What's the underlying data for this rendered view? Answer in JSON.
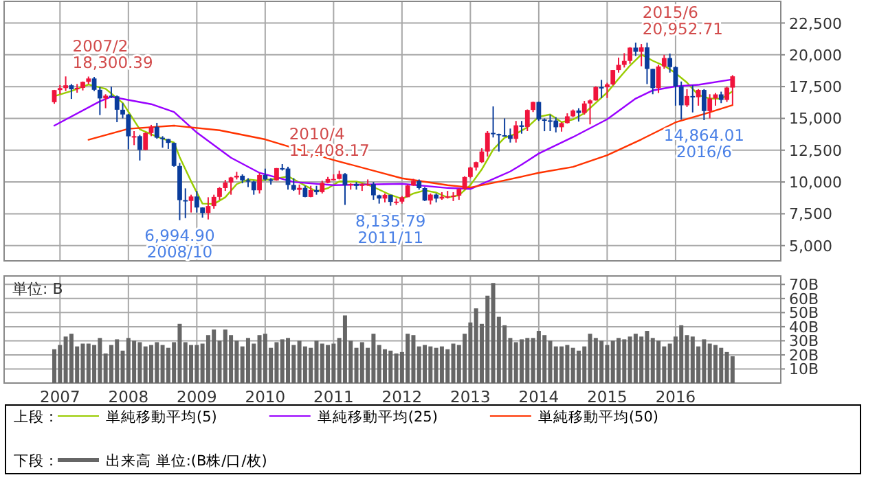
{
  "chart_data": [
    {
      "type": "candlestick",
      "legend": "bottom",
      "legend_title": "上段：",
      "grid": true,
      "tick_labels": "y",
      "xlim": [
        "2006-03-07",
        "2017-07-15"
      ],
      "xticks": [
        {
          "value": "2007-01",
          "label": null
        },
        {
          "value": "2008-01",
          "label": null
        },
        {
          "value": "2009-01",
          "label": null
        },
        {
          "value": "2010-01",
          "label": null
        },
        {
          "value": "2011-01",
          "label": null
        },
        {
          "value": "2012-01",
          "label": null
        },
        {
          "value": "2013-01",
          "label": null
        },
        {
          "value": "2014-01",
          "label": null
        },
        {
          "value": "2015-01",
          "label": null
        },
        {
          "value": "2016-01",
          "label": null
        }
      ],
      "ylim": [
        3800,
        24200
      ],
      "yticks": [
        {
          "value": 5000,
          "label": "5,000"
        },
        {
          "value": 7500,
          "label": "7,500"
        },
        {
          "value": 10000,
          "label": "10,000"
        },
        {
          "value": 12500,
          "label": "12,500"
        },
        {
          "value": 15000,
          "label": "15,000"
        },
        {
          "value": 17500,
          "label": "17,500"
        },
        {
          "value": 20000,
          "label": "20,000"
        },
        {
          "value": 22500,
          "label": "22,500"
        }
      ],
      "x": [
        "2006-12",
        "2007-01",
        "2007-02",
        "2007-03",
        "2007-04",
        "2007-05",
        "2007-06",
        "2007-07",
        "2007-08",
        "2007-09",
        "2007-10",
        "2007-11",
        "2007-12",
        "2008-01",
        "2008-02",
        "2008-03",
        "2008-04",
        "2008-05",
        "2008-06",
        "2008-07",
        "2008-08",
        "2008-09",
        "2008-10",
        "2008-11",
        "2008-12",
        "2009-01",
        "2009-02",
        "2009-03",
        "2009-04",
        "2009-05",
        "2009-06",
        "2009-07",
        "2009-08",
        "2009-09",
        "2009-10",
        "2009-11",
        "2009-12",
        "2010-01",
        "2010-02",
        "2010-03",
        "2010-04",
        "2010-05",
        "2010-06",
        "2010-07",
        "2010-08",
        "2010-09",
        "2010-10",
        "2010-11",
        "2010-12",
        "2011-01",
        "2011-02",
        "2011-03",
        "2011-04",
        "2011-05",
        "2011-06",
        "2011-07",
        "2011-08",
        "2011-09",
        "2011-10",
        "2011-11",
        "2011-12",
        "2012-01",
        "2012-02",
        "2012-03",
        "2012-04",
        "2012-05",
        "2012-06",
        "2012-07",
        "2012-08",
        "2012-09",
        "2012-10",
        "2012-11",
        "2012-12",
        "2013-01",
        "2013-02",
        "2013-03",
        "2013-04",
        "2013-05",
        "2013-06",
        "2013-07",
        "2013-08",
        "2013-09",
        "2013-10",
        "2013-11",
        "2013-12",
        "2014-01",
        "2014-02",
        "2014-03",
        "2014-04",
        "2014-05",
        "2014-06",
        "2014-07",
        "2014-08",
        "2014-09",
        "2014-10",
        "2014-11",
        "2014-12",
        "2015-01",
        "2015-02",
        "2015-03",
        "2015-04",
        "2015-05",
        "2015-06",
        "2015-07",
        "2015-08",
        "2015-09",
        "2015-10",
        "2015-11",
        "2015-12",
        "2016-01",
        "2016-02",
        "2016-03",
        "2016-04",
        "2016-05",
        "2016-06",
        "2016-07",
        "2016-08",
        "2016-09",
        "2016-10",
        "2016-11"
      ],
      "ohlc": [
        [
          16274,
          17240,
          16150,
          17226
        ],
        [
          17226,
          17620,
          16900,
          17383
        ],
        [
          17383,
          18300.39,
          17150,
          17604
        ],
        [
          17604,
          17700,
          16530,
          17288
        ],
        [
          17288,
          17700,
          17020,
          17400
        ],
        [
          17400,
          17900,
          17200,
          17876
        ],
        [
          17876,
          18290,
          17700,
          18138
        ],
        [
          18138,
          18260,
          17150,
          17249
        ],
        [
          17249,
          17460,
          15262,
          16569
        ],
        [
          16569,
          16900,
          15800,
          16786
        ],
        [
          16786,
          17488,
          16600,
          16738
        ],
        [
          16738,
          16800,
          14700,
          15681
        ],
        [
          15681,
          16200,
          15000,
          15308
        ],
        [
          15308,
          15350,
          12570,
          13592
        ],
        [
          13592,
          14000,
          12900,
          13603
        ],
        [
          13603,
          13700,
          11690,
          12526
        ],
        [
          12526,
          13900,
          12500,
          13850
        ],
        [
          13850,
          14490,
          13600,
          14339
        ],
        [
          14339,
          14650,
          13400,
          13481
        ],
        [
          13481,
          13600,
          12700,
          13377
        ],
        [
          13377,
          13400,
          12600,
          13073
        ],
        [
          13073,
          13100,
          11200,
          11260
        ],
        [
          11260,
          11500,
          6994.9,
          8577
        ],
        [
          8577,
          9500,
          7160,
          8512
        ],
        [
          8512,
          9000,
          7600,
          8860
        ],
        [
          8860,
          9300,
          7600,
          7994
        ],
        [
          7994,
          8000,
          7200,
          7568
        ],
        [
          7568,
          8800,
          7055,
          8110
        ],
        [
          8110,
          9000,
          7900,
          8828
        ],
        [
          8828,
          9600,
          8600,
          9523
        ],
        [
          9523,
          10170,
          9300,
          9958
        ],
        [
          9958,
          10400,
          9000,
          10357
        ],
        [
          10357,
          10800,
          10200,
          10493
        ],
        [
          10493,
          10600,
          9900,
          10133
        ],
        [
          10133,
          10300,
          9600,
          10034
        ],
        [
          10034,
          10100,
          9000,
          9346
        ],
        [
          9346,
          10700,
          9100,
          10546
        ],
        [
          10546,
          11050,
          10100,
          10198
        ],
        [
          10198,
          10300,
          9800,
          10126
        ],
        [
          10126,
          11100,
          10100,
          11090
        ],
        [
          11090,
          11408.17,
          10900,
          11057
        ],
        [
          11057,
          11200,
          9400,
          9769
        ],
        [
          9769,
          10300,
          9300,
          9383
        ],
        [
          9383,
          9800,
          9000,
          9537
        ],
        [
          9537,
          9700,
          8800,
          8824
        ],
        [
          8824,
          9700,
          8800,
          9369
        ],
        [
          9369,
          9700,
          9000,
          9202
        ],
        [
          9202,
          10100,
          9100,
          9937
        ],
        [
          9937,
          10400,
          9900,
          10229
        ],
        [
          10229,
          10600,
          10200,
          10238
        ],
        [
          10238,
          10890,
          10200,
          10624
        ],
        [
          10624,
          10700,
          8200,
          9755
        ],
        [
          9755,
          9900,
          9400,
          9850
        ],
        [
          9850,
          10000,
          9400,
          9694
        ],
        [
          9694,
          9900,
          9300,
          9816
        ],
        [
          9816,
          10200,
          9700,
          9833
        ],
        [
          9833,
          10000,
          8600,
          8955
        ],
        [
          8955,
          9000,
          8300,
          8700
        ],
        [
          8700,
          9100,
          8400,
          8988
        ],
        [
          8988,
          9000,
          8135.79,
          8435
        ],
        [
          8435,
          8700,
          8200,
          8455
        ],
        [
          8455,
          8900,
          8300,
          8803
        ],
        [
          8803,
          9800,
          8800,
          9723
        ],
        [
          9723,
          10250,
          9700,
          10084
        ],
        [
          10084,
          10200,
          9400,
          9521
        ],
        [
          9521,
          9600,
          8500,
          8543
        ],
        [
          8543,
          9100,
          8240,
          9007
        ],
        [
          9007,
          9100,
          8400,
          8695
        ],
        [
          8695,
          9200,
          8600,
          8840
        ],
        [
          8840,
          9300,
          8700,
          8870
        ],
        [
          8870,
          9200,
          8500,
          8928
        ],
        [
          8928,
          9500,
          8600,
          9446
        ],
        [
          9446,
          10450,
          9400,
          10395
        ],
        [
          10395,
          11200,
          10300,
          11139
        ],
        [
          11139,
          11600,
          10900,
          11559
        ],
        [
          11559,
          12650,
          11500,
          12398
        ],
        [
          12398,
          14000,
          12000,
          13861
        ],
        [
          13861,
          15942,
          13500,
          13775
        ],
        [
          13775,
          13800,
          12400,
          13677
        ],
        [
          13677,
          15000,
          13600,
          13668
        ],
        [
          13668,
          14200,
          13100,
          13389
        ],
        [
          13389,
          14800,
          13100,
          14456
        ],
        [
          14456,
          14800,
          13800,
          14328
        ],
        [
          14328,
          15700,
          14000,
          15662
        ],
        [
          15662,
          16320,
          15500,
          16291
        ],
        [
          16291,
          16320,
          14800,
          14915
        ],
        [
          14915,
          15000,
          13995,
          14841
        ],
        [
          14841,
          15300,
          14000,
          14828
        ],
        [
          14828,
          15100,
          13900,
          14304
        ],
        [
          14304,
          14700,
          13960,
          14632
        ],
        [
          14632,
          15400,
          14600,
          15162
        ],
        [
          15162,
          15700,
          15100,
          15621
        ],
        [
          15621,
          15800,
          14750,
          15425
        ],
        [
          15425,
          16370,
          15300,
          16174
        ],
        [
          16174,
          16500,
          14530,
          16414
        ],
        [
          16414,
          17520,
          16400,
          17460
        ],
        [
          17460,
          18030,
          16600,
          17451
        ],
        [
          17451,
          17800,
          16600,
          17674
        ],
        [
          17674,
          18800,
          17600,
          18798
        ],
        [
          18798,
          19780,
          18600,
          19207
        ],
        [
          19207,
          20130,
          19000,
          19520
        ],
        [
          19520,
          20600,
          19300,
          20563
        ],
        [
          20563,
          20952.71,
          19900,
          20236
        ],
        [
          20236,
          20850,
          19100,
          20585
        ],
        [
          20585,
          20950,
          17700,
          18891
        ],
        [
          18891,
          18900,
          16900,
          17388
        ],
        [
          17388,
          19200,
          17000,
          19083
        ],
        [
          19083,
          20000,
          18900,
          19747
        ],
        [
          19747,
          20100,
          18600,
          19034
        ],
        [
          19034,
          19100,
          16000,
          17518
        ],
        [
          17518,
          17900,
          14900,
          16027
        ],
        [
          16027,
          17300,
          15900,
          16759
        ],
        [
          16759,
          17600,
          15470,
          16666
        ],
        [
          16666,
          17300,
          16000,
          17235
        ],
        [
          17235,
          17300,
          14864.01,
          15576
        ],
        [
          15576,
          16900,
          15000,
          16569
        ],
        [
          16569,
          17000,
          16000,
          16887
        ],
        [
          16887,
          17100,
          16200,
          16450
        ],
        [
          16450,
          17500,
          16300,
          17425
        ],
        [
          17425,
          18400,
          16100,
          18308
        ]
      ],
      "colors": [
        "#f0143c",
        "#f0143c",
        "#f0143c",
        "#0a3c9c",
        "#f0143c",
        "#f0143c",
        "#f0143c",
        "#0a3c9c",
        "#0a3c9c",
        "#f0143c",
        "#0a3c9c",
        "#0a3c9c",
        "#0a3c9c",
        "#0a3c9c",
        "#f0143c",
        "#0a3c9c",
        "#f0143c",
        "#f0143c",
        "#0a3c9c",
        "#0a3c9c",
        "#0a3c9c",
        "#0a3c9c",
        "#0a3c9c",
        "#0a3c9c",
        "#f0143c",
        "#0a3c9c",
        "#0a3c9c",
        "#f0143c",
        "#f0143c",
        "#f0143c",
        "#f0143c",
        "#f0143c",
        "#f0143c",
        "#0a3c9c",
        "#0a3c9c",
        "#0a3c9c",
        "#f0143c",
        "#0a3c9c",
        "#0a3c9c",
        "#f0143c",
        "#0a3c9c",
        "#0a3c9c",
        "#0a3c9c",
        "#f0143c",
        "#0a3c9c",
        "#f0143c",
        "#0a3c9c",
        "#f0143c",
        "#f0143c",
        "#f0143c",
        "#f0143c",
        "#0a3c9c",
        "#f0143c",
        "#0a3c9c",
        "#f0143c",
        "#f0143c",
        "#0a3c9c",
        "#0a3c9c",
        "#f0143c",
        "#0a3c9c",
        "#f0143c",
        "#f0143c",
        "#f0143c",
        "#f0143c",
        "#0a3c9c",
        "#0a3c9c",
        "#f0143c",
        "#0a3c9c",
        "#f0143c",
        "#f0143c",
        "#f0143c",
        "#f0143c",
        "#f0143c",
        "#f0143c",
        "#f0143c",
        "#f0143c",
        "#f0143c",
        "#0a3c9c",
        "#0a3c9c",
        "#0a3c9c",
        "#0a3c9c",
        "#f0143c",
        "#0a3c9c",
        "#f0143c",
        "#f0143c",
        "#0a3c9c",
        "#0a3c9c",
        "#0a3c9c",
        "#0a3c9c",
        "#f0143c",
        "#f0143c",
        "#f0143c",
        "#0a3c9c",
        "#f0143c",
        "#f0143c",
        "#f0143c",
        "#0a3c9c",
        "#f0143c",
        "#f0143c",
        "#f0143c",
        "#f0143c",
        "#f0143c",
        "#0a3c9c",
        "#f0143c",
        "#0a3c9c",
        "#0a3c9c",
        "#f0143c",
        "#f0143c",
        "#0a3c9c",
        "#0a3c9c",
        "#0a3c9c",
        "#f0143c",
        "#0a3c9c",
        "#f0143c",
        "#0a3c9c",
        "#f0143c",
        "#f0143c",
        "#0a3c9c",
        "#f0143c",
        "#f0143c"
      ],
      "series": [
        {
          "type": "line",
          "name": "単純移動平均(5)",
          "color": "#99cc00",
          "x": [
            "2006-12",
            "2007-03",
            "2007-06",
            "2007-09",
            "2007-12",
            "2008-03",
            "2008-06",
            "2008-09",
            "2008-10",
            "2008-12",
            "2009-02",
            "2009-04",
            "2009-06",
            "2009-08",
            "2009-10",
            "2009-12",
            "2010-03",
            "2010-05",
            "2010-08",
            "2010-10",
            "2010-12",
            "2011-02",
            "2011-05",
            "2011-07",
            "2011-09",
            "2011-11",
            "2012-01",
            "2012-03",
            "2012-05",
            "2012-07",
            "2012-09",
            "2012-11",
            "2013-01",
            "2013-03",
            "2013-05",
            "2013-07",
            "2013-09",
            "2013-11",
            "2014-01",
            "2014-03",
            "2014-05",
            "2014-07",
            "2014-09",
            "2014-11",
            "2015-01",
            "2015-03",
            "2015-05",
            "2015-07",
            "2015-09",
            "2015-11",
            "2016-01",
            "2016-03",
            "2016-05",
            "2016-07",
            "2016-09",
            "2016-11"
          ],
          "values": [
            16750,
            17155,
            17661,
            17324,
            16216,
            14142,
            13560,
            13106,
            11954,
            10056,
            8302,
            8272,
            8797,
            9832,
            10195,
            10110,
            10261,
            10448,
            9714,
            9263,
            9512,
            10046,
            10032,
            9790,
            9400,
            8982,
            8676,
            9100,
            9335,
            9170,
            8791,
            8956,
            9756,
            10987,
            12546,
            13476,
            13793,
            14301,
            15130,
            15307,
            14704,
            14909,
            15403,
            16219,
            17035,
            18118,
            19152,
            20022,
            19533,
            19139,
            18554,
            17817,
            16841,
            16561,
            16543,
            17128
          ]
        },
        {
          "type": "line",
          "name": "単純移動平均(25)",
          "color": "#9900ff",
          "x": [
            "2006-12",
            "2007-08",
            "2007-10",
            "2008-05",
            "2008-09",
            "2009-01",
            "2009-07",
            "2009-12",
            "2010-06",
            "2011-01",
            "2012-01",
            "2012-09",
            "2013-01",
            "2013-08",
            "2013-10",
            "2014-01",
            "2014-07",
            "2015-01",
            "2015-06",
            "2015-09",
            "2016-01",
            "2016-05",
            "2016-11"
          ],
          "values": [
            14430,
            16340,
            16700,
            16120,
            15510,
            13890,
            11910,
            10720,
            10000,
            9750,
            9860,
            9530,
            9450,
            10830,
            11370,
            12240,
            13530,
            14930,
            16560,
            17200,
            17520,
            17640,
            18070
          ]
        },
        {
          "type": "line",
          "name": "単純移動平均(50)",
          "color": "#ff3300",
          "x": [
            "2007-06",
            "2008-01",
            "2008-09",
            "2009-05",
            "2010-01",
            "2011-01",
            "2012-01",
            "2012-09",
            "2013-01",
            "2013-05",
            "2014-01",
            "2014-07",
            "2015-01",
            "2015-07",
            "2016-01",
            "2016-06",
            "2016-11"
          ],
          "values": [
            13320,
            14180,
            14430,
            14070,
            13350,
            11730,
            10290,
            9750,
            9570,
            9930,
            10720,
            11190,
            12100,
            13350,
            14690,
            15340,
            16050
          ]
        }
      ],
      "annotations": [
        {
          "text": "2007/2\n18,300.39",
          "x": "2007-02",
          "y": 18300.39
        },
        {
          "text": "6,994.90\n2008/10",
          "x": "2008-10",
          "y": 6994.9
        },
        {
          "text": "2010/4\n11,408.17",
          "x": "2010-04",
          "y": 11408.17
        },
        {
          "text": "8,135.79\n2011/11",
          "x": "2011-11",
          "y": 8135.79
        },
        {
          "text": "2015/6\n20,952.71",
          "x": "2015-06",
          "y": 20952.71
        },
        {
          "text": "14,864.01\n2016/6",
          "x": "2016-06",
          "y": 14864.01
        }
      ]
    },
    {
      "type": "bar",
      "legend": "bottom",
      "legend_title": "下段：",
      "grid": true,
      "ylabel": "単位: B",
      "xlim": [
        "2006-03-07",
        "2017-07-15"
      ],
      "xticks": [
        {
          "value": "2007-01",
          "label": "2007"
        },
        {
          "value": "2008-01",
          "label": "2008"
        },
        {
          "value": "2009-01",
          "label": "2009"
        },
        {
          "value": "2010-01",
          "label": "2010"
        },
        {
          "value": "2011-01",
          "label": "2011"
        },
        {
          "value": "2012-01",
          "label": "2012"
        },
        {
          "value": "2013-01",
          "label": "2013"
        },
        {
          "value": "2014-01",
          "label": "2014"
        },
        {
          "value": "2015-01",
          "label": "2015"
        },
        {
          "value": "2016-01",
          "label": "2016"
        }
      ],
      "ylim": [
        0,
        76
      ],
      "yticks": [
        {
          "value": 10,
          "label": "10B"
        },
        {
          "value": 20,
          "label": "20B"
        },
        {
          "value": 30,
          "label": "30B"
        },
        {
          "value": 40,
          "label": "40B"
        },
        {
          "value": 50,
          "label": "50B"
        },
        {
          "value": 60,
          "label": "60B"
        },
        {
          "value": 70,
          "label": "70B"
        }
      ],
      "x": [
        "2006-12",
        "2007-01",
        "2007-02",
        "2007-03",
        "2007-04",
        "2007-05",
        "2007-06",
        "2007-07",
        "2007-08",
        "2007-09",
        "2007-10",
        "2007-11",
        "2007-12",
        "2008-01",
        "2008-02",
        "2008-03",
        "2008-04",
        "2008-05",
        "2008-06",
        "2008-07",
        "2008-08",
        "2008-09",
        "2008-10",
        "2008-11",
        "2008-12",
        "2009-01",
        "2009-02",
        "2009-03",
        "2009-04",
        "2009-05",
        "2009-06",
        "2009-07",
        "2009-08",
        "2009-09",
        "2009-10",
        "2009-11",
        "2009-12",
        "2010-01",
        "2010-02",
        "2010-03",
        "2010-04",
        "2010-05",
        "2010-06",
        "2010-07",
        "2010-08",
        "2010-09",
        "2010-10",
        "2010-11",
        "2010-12",
        "2011-01",
        "2011-02",
        "2011-03",
        "2011-04",
        "2011-05",
        "2011-06",
        "2011-07",
        "2011-08",
        "2011-09",
        "2011-10",
        "2011-11",
        "2011-12",
        "2012-01",
        "2012-02",
        "2012-03",
        "2012-04",
        "2012-05",
        "2012-06",
        "2012-07",
        "2012-08",
        "2012-09",
        "2012-10",
        "2012-11",
        "2012-12",
        "2013-01",
        "2013-02",
        "2013-03",
        "2013-04",
        "2013-05",
        "2013-06",
        "2013-07",
        "2013-08",
        "2013-09",
        "2013-10",
        "2013-11",
        "2013-12",
        "2014-01",
        "2014-02",
        "2014-03",
        "2014-04",
        "2014-05",
        "2014-06",
        "2014-07",
        "2014-08",
        "2014-09",
        "2014-10",
        "2014-11",
        "2014-12",
        "2015-01",
        "2015-02",
        "2015-03",
        "2015-04",
        "2015-05",
        "2015-06",
        "2015-07",
        "2015-08",
        "2015-09",
        "2015-10",
        "2015-11",
        "2015-12",
        "2016-01",
        "2016-02",
        "2016-03",
        "2016-04",
        "2016-05",
        "2016-06",
        "2016-07",
        "2016-08",
        "2016-09",
        "2016-10",
        "2016-11"
      ],
      "series": [
        {
          "name": "出来高 単位:(B株/口/枚)",
          "color": "#666666",
          "values": [
            24,
            27,
            33,
            35,
            26,
            28,
            28,
            27,
            32,
            21,
            27,
            31,
            23,
            32,
            30,
            29,
            26,
            27,
            29,
            27,
            25,
            29,
            42,
            29,
            27,
            27,
            28,
            34,
            38,
            30,
            38,
            34,
            30,
            26,
            32,
            28,
            34,
            35,
            25,
            29,
            31,
            32,
            27,
            30,
            26,
            25,
            30,
            28,
            27,
            28,
            32,
            48,
            30,
            25,
            29,
            25,
            35,
            27,
            24,
            23,
            21,
            22,
            35,
            34,
            26,
            27,
            26,
            25,
            26,
            24,
            28,
            27,
            35,
            43,
            53,
            42,
            62,
            71,
            47,
            41,
            32,
            29,
            31,
            32,
            32,
            37,
            34,
            30,
            26,
            26,
            27,
            25,
            23,
            26,
            35,
            32,
            30,
            27,
            30,
            32,
            31,
            33,
            35,
            33,
            37,
            32,
            30,
            26,
            28,
            33,
            41,
            34,
            33,
            26,
            31,
            28,
            27,
            25,
            22,
            19
          ]
        }
      ]
    }
  ]
}
